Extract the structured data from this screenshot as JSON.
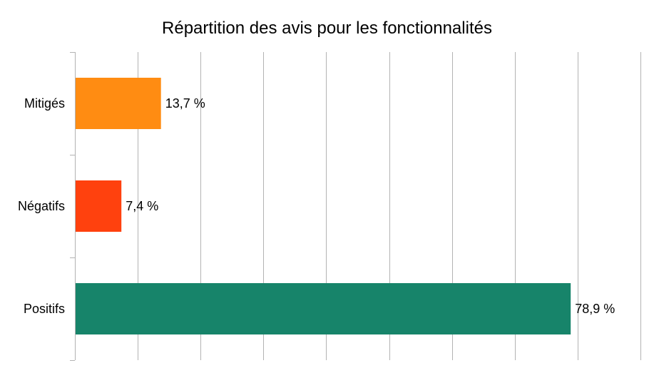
{
  "chart_data": {
    "type": "bar",
    "orientation": "horizontal",
    "title": "Répartition des avis pour les fonctionnalités",
    "categories": [
      "Mitigés",
      "Négatifs",
      "Positifs"
    ],
    "values": [
      13.7,
      7.4,
      78.9
    ],
    "value_labels": [
      "13,7 %",
      "7,4 %",
      "78,9 %"
    ],
    "colors": [
      "#ff8c12",
      "#ff410e",
      "#17846a"
    ],
    "xlim": [
      0,
      90
    ],
    "grid": true,
    "legend": "none"
  }
}
